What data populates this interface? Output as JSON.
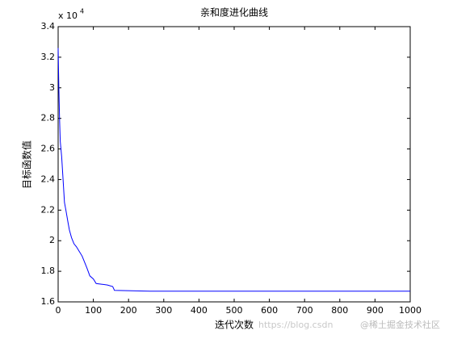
{
  "chart_data": {
    "type": "line",
    "title": "亲和度进化曲线",
    "xlabel": "迭代次数",
    "ylabel": "目标函数值",
    "y_multiplier": {
      "base": "x 10",
      "exponent": "4"
    },
    "x": [
      0,
      2,
      4,
      6,
      10,
      14,
      18,
      22,
      28,
      32,
      38,
      45,
      52,
      60,
      68,
      75,
      82,
      90,
      100,
      108,
      125,
      140,
      155,
      160,
      260,
      1000
    ],
    "series": [
      {
        "name": "目标函数值",
        "color": "#0000ff",
        "values": [
          3.26,
          3.0,
          2.8,
          2.65,
          2.55,
          2.4,
          2.25,
          2.2,
          2.12,
          2.07,
          2.02,
          1.98,
          1.96,
          1.93,
          1.9,
          1.86,
          1.82,
          1.77,
          1.75,
          1.72,
          1.715,
          1.71,
          1.7,
          1.675,
          1.67,
          1.67
        ]
      }
    ],
    "xlim": [
      0,
      1000
    ],
    "xticks": [
      0,
      100,
      200,
      300,
      400,
      500,
      600,
      700,
      800,
      900,
      1000
    ],
    "ylim": [
      1.6,
      3.4
    ],
    "yticks": [
      1.6,
      1.8,
      2,
      2.2,
      2.4,
      2.6,
      2.8,
      3,
      3.2,
      3.4
    ],
    "grid": false,
    "watermark": [
      "https://blog.csdn",
      "@稀土掘金技术社区"
    ]
  }
}
